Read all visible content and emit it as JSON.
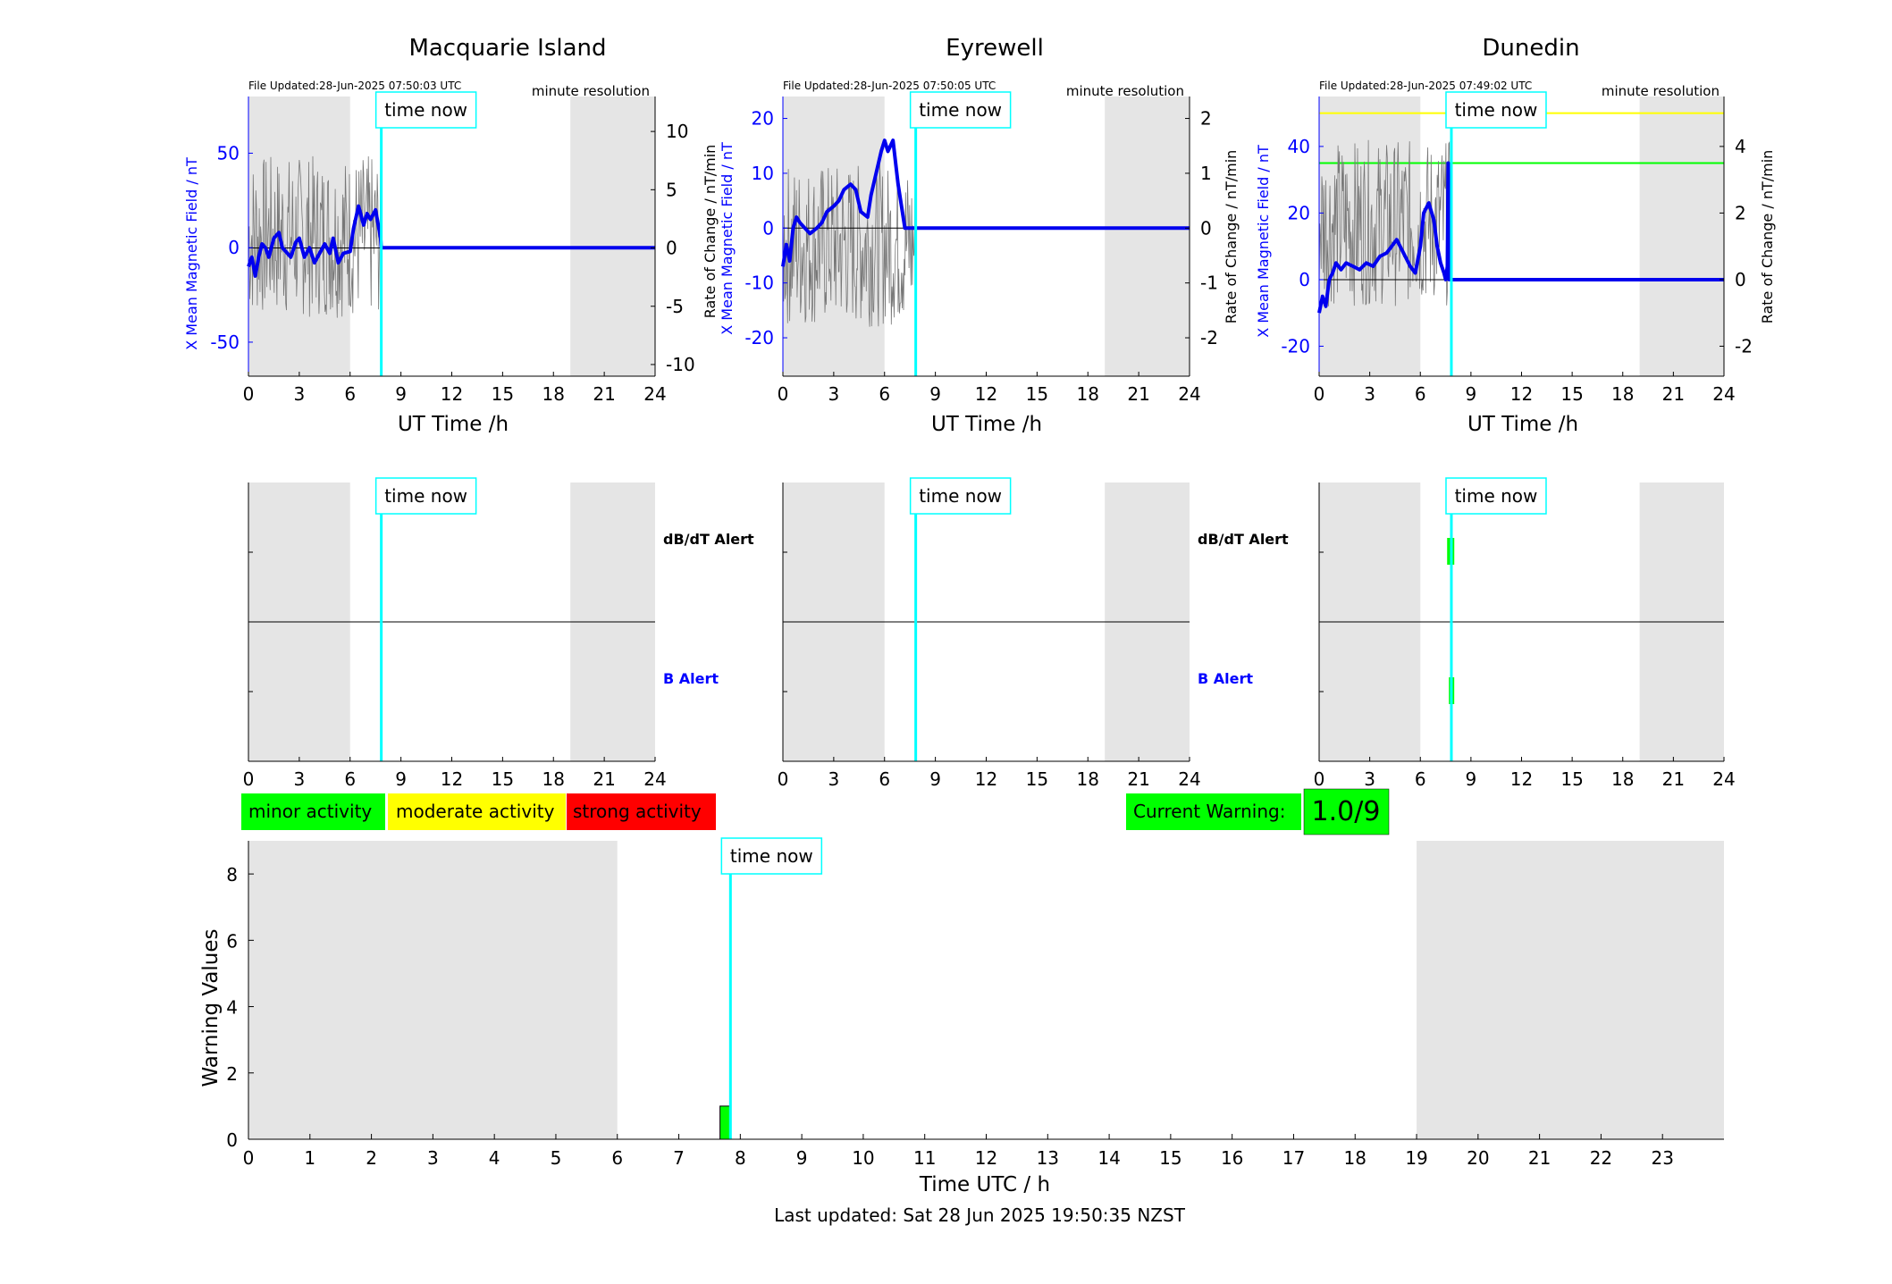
{
  "stations": [
    {
      "title": "Macquarie Island",
      "file_updated": "File Updated:28-Jun-2025 07:50:03 UTC",
      "resolution": "minute resolution",
      "left_ylabel": "X Mean Magnetic Field / nT",
      "right_ylabel": "Rate of Change / nT/min",
      "xlabel": "UT Time /h",
      "left_ylim": [
        -68,
        80
      ],
      "left_yticks": [
        -50,
        0,
        50
      ],
      "right_ylim": [
        -11,
        13
      ],
      "right_yticks": [
        -10,
        -5,
        0,
        5,
        10
      ],
      "time_now_label": "time now",
      "thresholds": [],
      "dbdt_alert_marks": [],
      "b_alert_marks": []
    },
    {
      "title": "Eyrewell",
      "file_updated": "File Updated:28-Jun-2025 07:50:05 UTC",
      "resolution": "minute resolution",
      "left_ylabel": "X Mean Magnetic Field / nT",
      "right_ylabel": "Rate of Change / nT/min",
      "xlabel": "UT Time /h",
      "left_ylim": [
        -27,
        24
      ],
      "left_yticks": [
        -20,
        -10,
        0,
        10,
        20
      ],
      "right_ylim": [
        -2.7,
        2.4
      ],
      "right_yticks": [
        -2,
        -1,
        0,
        1,
        2
      ],
      "time_now_label": "time now",
      "thresholds": [],
      "dbdt_alert_marks": [],
      "b_alert_marks": []
    },
    {
      "title": "Dunedin",
      "file_updated": "File Updated:28-Jun-2025 07:49:02 UTC",
      "resolution": "minute resolution",
      "left_ylabel": "X Mean Magnetic Field / nT",
      "right_ylabel": "Rate of Change / nT/min",
      "xlabel": "UT Time /h",
      "left_ylim": [
        -29,
        55
      ],
      "left_yticks": [
        -20,
        0,
        20,
        40
      ],
      "right_ylim": [
        -2.9,
        5.5
      ],
      "right_yticks": [
        -2,
        0,
        2,
        4
      ],
      "time_now_label": "time now",
      "thresholds": [
        {
          "value": 50,
          "color": "#ffff00"
        },
        {
          "value": 35,
          "color": "#00ff00"
        }
      ],
      "dbdt_alert_marks": [
        7.8
      ],
      "b_alert_marks": [
        7.85
      ]
    }
  ],
  "chart_data": [
    {
      "type": "line",
      "panel": "magnetic-field",
      "x_range": [
        0,
        24
      ],
      "x_ticks": [
        0,
        3,
        6,
        9,
        12,
        15,
        18,
        21,
        24
      ],
      "shaded_hours": [
        [
          0,
          6
        ],
        [
          19,
          24
        ]
      ],
      "time_now": 7.84,
      "series": [
        {
          "station": "Macquarie Island",
          "x_mean": {
            "x": [
              0,
              0.2,
              0.4,
              0.6,
              0.8,
              1.0,
              1.2,
              1.5,
              1.8,
              2.0,
              2.2,
              2.5,
              2.8,
              3.0,
              3.3,
              3.6,
              3.9,
              4.2,
              4.5,
              4.8,
              5.0,
              5.3,
              5.6,
              6.0,
              6.2,
              6.5,
              6.8,
              7.0,
              7.2,
              7.5,
              7.8,
              7.84
            ],
            "y": [
              -10,
              -5,
              -15,
              -5,
              2,
              0,
              -5,
              5,
              8,
              0,
              -2,
              -5,
              3,
              5,
              -5,
              0,
              -8,
              -3,
              2,
              -3,
              5,
              -8,
              -3,
              -2,
              10,
              22,
              12,
              18,
              15,
              20,
              5,
              0
            ]
          },
          "rate_of_change_range": [
            -6,
            8
          ]
        },
        {
          "station": "Eyrewell",
          "x_mean": {
            "x": [
              0,
              0.2,
              0.4,
              0.6,
              0.8,
              1.0,
              1.3,
              1.6,
              2.0,
              2.3,
              2.6,
              3.0,
              3.3,
              3.6,
              4.0,
              4.3,
              4.6,
              5.0,
              5.2,
              5.5,
              5.8,
              6.0,
              6.2,
              6.5,
              6.8,
              7.0,
              7.2,
              7.84
            ],
            "y": [
              -7,
              -3,
              -6,
              0,
              2,
              1,
              0,
              -1,
              0,
              1,
              3,
              4,
              5,
              7,
              8,
              7,
              3,
              2,
              6,
              10,
              14,
              16,
              14,
              16,
              8,
              4,
              0,
              0
            ]
          },
          "rate_of_change_range": [
            -1.8,
            1.2
          ]
        },
        {
          "station": "Dunedin",
          "x_mean": {
            "x": [
              0,
              0.2,
              0.4,
              0.6,
              0.8,
              1.0,
              1.3,
              1.6,
              2.0,
              2.4,
              2.8,
              3.2,
              3.6,
              4.0,
              4.3,
              4.6,
              5.0,
              5.4,
              5.7,
              6.0,
              6.2,
              6.5,
              6.8,
              7.0,
              7.2,
              7.4,
              7.5,
              7.6,
              7.65,
              7.7,
              7.84
            ],
            "y": [
              -10,
              -5,
              -8,
              0,
              2,
              5,
              3,
              5,
              4,
              3,
              5,
              4,
              7,
              8,
              10,
              12,
              8,
              4,
              2,
              10,
              20,
              23,
              18,
              10,
              5,
              2,
              0,
              4,
              35,
              0,
              0
            ]
          },
          "rate_of_change_range": [
            -0.8,
            4.2
          ]
        }
      ]
    },
    {
      "type": "bar",
      "panel": "warning-values",
      "title": "",
      "xlabel": "Time UTC / h",
      "ylabel": "Warning Values",
      "x_range": [
        0,
        24
      ],
      "x_ticks": [
        0,
        1,
        2,
        3,
        4,
        5,
        6,
        7,
        8,
        9,
        10,
        11,
        12,
        13,
        14,
        15,
        16,
        17,
        18,
        19,
        20,
        21,
        22,
        23
      ],
      "ylim": [
        0,
        9
      ],
      "y_ticks": [
        0,
        2,
        4,
        6,
        8
      ],
      "shaded_hours": [
        [
          0,
          6
        ],
        [
          19,
          24
        ]
      ],
      "time_now": 7.84,
      "bars": [
        {
          "x_start": 7.67,
          "x_end": 7.84,
          "value": 1.0,
          "color": "#00ff00"
        }
      ]
    }
  ],
  "alerts": {
    "dbdt_label": "dB/dT Alert",
    "b_label": "B Alert",
    "x_ticks": [
      0,
      3,
      6,
      9,
      12,
      15,
      18,
      21,
      24
    ]
  },
  "legend": {
    "items": [
      {
        "label": "minor activity",
        "color": "#00ff00"
      },
      {
        "label": "moderate activity",
        "color": "#ffff00"
      },
      {
        "label": "strong activity",
        "color": "#ff0000"
      }
    ]
  },
  "current_warning": {
    "label": "Current Warning:",
    "value": "1.0/9",
    "color": "#00ff00"
  },
  "warning_panel": {
    "time_now_label": "time now"
  },
  "footer": {
    "last_updated": "Last updated: Sat 28 Jun 2025 19:50:35 NZST"
  }
}
